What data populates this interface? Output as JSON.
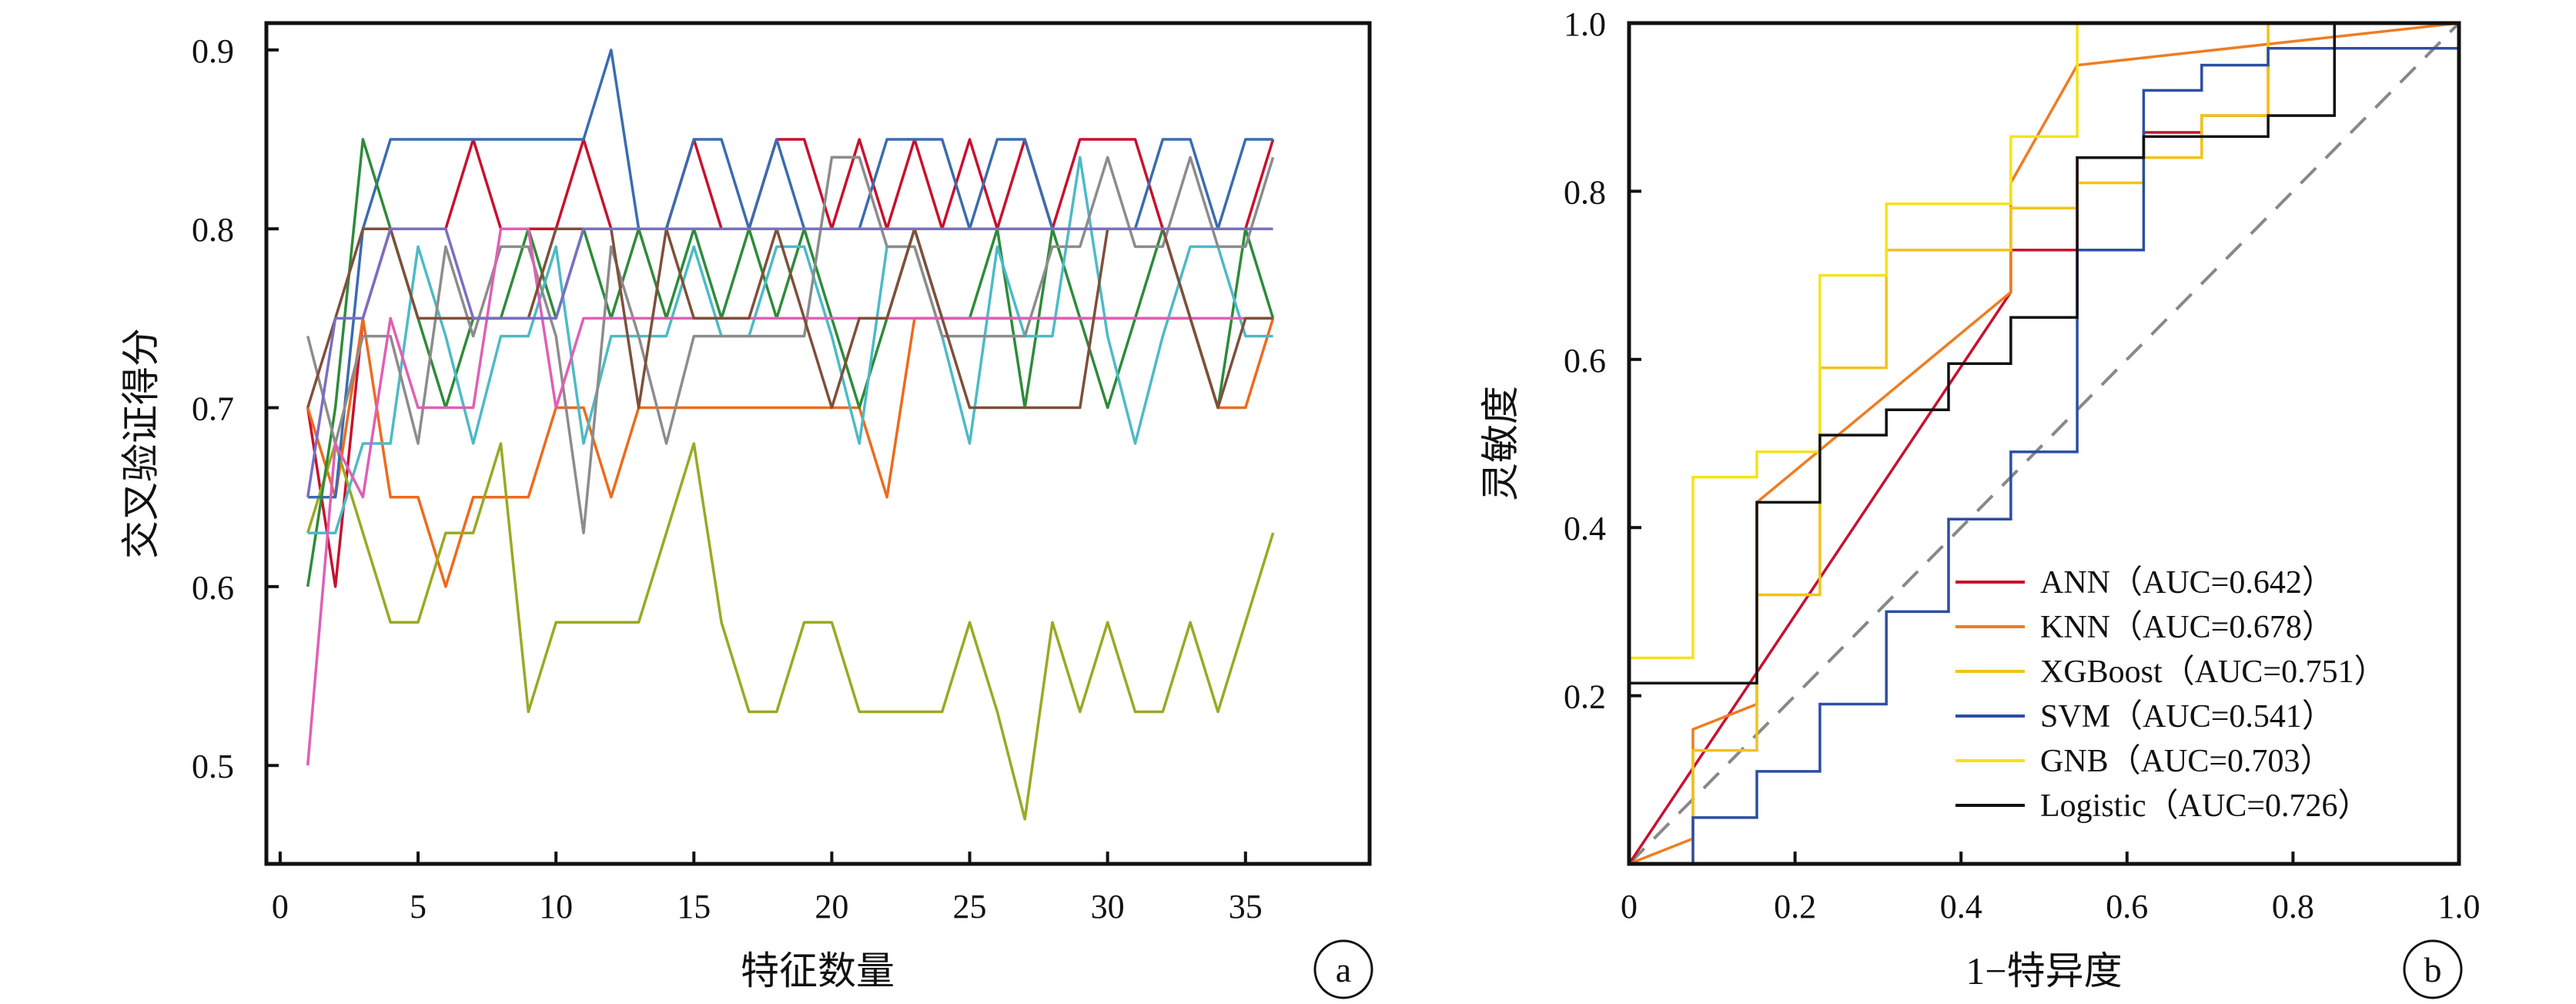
{
  "chart_data": [
    {
      "type": "line",
      "panel_label": "a",
      "xlabel": "特征数量",
      "ylabel": "交叉验证得分",
      "xlim": [
        -0.5,
        39.5
      ],
      "ylim": [
        0.445,
        0.915
      ],
      "xticks": [
        0,
        5,
        10,
        15,
        20,
        25,
        30,
        35
      ],
      "yticks": [
        0.5,
        0.6,
        0.7,
        0.8,
        0.9
      ],
      "grid": false,
      "legend": "none",
      "x": [
        1,
        2,
        3,
        4,
        5,
        6,
        7,
        8,
        9,
        10,
        11,
        12,
        13,
        14,
        15,
        16,
        17,
        18,
        19,
        20,
        21,
        22,
        23,
        24,
        25,
        26,
        27,
        28,
        29,
        30,
        31,
        32,
        33,
        34,
        35,
        36
      ],
      "series": [
        {
          "color": "#c8102e",
          "values": [
            0.7,
            0.6,
            0.75,
            0.8,
            0.8,
            0.8,
            0.85,
            0.8,
            0.8,
            0.8,
            0.85,
            0.8,
            0.8,
            0.8,
            0.85,
            0.8,
            0.8,
            0.85,
            0.85,
            0.8,
            0.85,
            0.8,
            0.85,
            0.8,
            0.85,
            0.8,
            0.85,
            0.8,
            0.85,
            0.85,
            0.85,
            0.8,
            0.8,
            0.8,
            0.8,
            0.85
          ]
        },
        {
          "color": "#ee6a1c",
          "values": [
            0.7,
            0.65,
            0.75,
            0.65,
            0.65,
            0.6,
            0.65,
            0.65,
            0.65,
            0.7,
            0.7,
            0.65,
            0.7,
            0.7,
            0.7,
            0.7,
            0.7,
            0.7,
            0.7,
            0.7,
            0.7,
            0.65,
            0.75,
            0.75,
            0.75,
            0.75,
            0.75,
            0.75,
            0.75,
            0.75,
            0.75,
            0.75,
            0.75,
            0.7,
            0.7,
            0.75
          ]
        },
        {
          "color": "#9aa923",
          "values": [
            0.63,
            0.68,
            0.63,
            0.58,
            0.58,
            0.63,
            0.63,
            0.68,
            0.53,
            0.58,
            0.58,
            0.58,
            0.58,
            0.63,
            0.68,
            0.58,
            0.53,
            0.53,
            0.58,
            0.58,
            0.53,
            0.53,
            0.53,
            0.53,
            0.58,
            0.53,
            0.47,
            0.58,
            0.53,
            0.58,
            0.53,
            0.53,
            0.58,
            0.53,
            0.58,
            0.63
          ]
        },
        {
          "color": "#3a6cb0",
          "values": [
            0.65,
            0.65,
            0.8,
            0.85,
            0.85,
            0.85,
            0.85,
            0.85,
            0.85,
            0.85,
            0.85,
            0.9,
            0.8,
            0.8,
            0.85,
            0.85,
            0.8,
            0.85,
            0.8,
            0.8,
            0.8,
            0.85,
            0.85,
            0.85,
            0.8,
            0.85,
            0.85,
            0.8,
            0.8,
            0.8,
            0.8,
            0.85,
            0.85,
            0.8,
            0.85,
            0.85
          ]
        },
        {
          "color": "#2e8b3a",
          "values": [
            0.6,
            0.7,
            0.85,
            0.8,
            0.75,
            0.7,
            0.75,
            0.75,
            0.8,
            0.75,
            0.8,
            0.75,
            0.8,
            0.75,
            0.8,
            0.75,
            0.8,
            0.75,
            0.8,
            0.75,
            0.7,
            0.75,
            0.8,
            0.75,
            0.75,
            0.8,
            0.7,
            0.8,
            0.75,
            0.7,
            0.75,
            0.8,
            0.75,
            0.7,
            0.8,
            0.75
          ]
        },
        {
          "color": "#4dbac6",
          "values": [
            0.63,
            0.63,
            0.68,
            0.68,
            0.79,
            0.74,
            0.68,
            0.74,
            0.74,
            0.79,
            0.68,
            0.74,
            0.74,
            0.74,
            0.79,
            0.74,
            0.74,
            0.79,
            0.79,
            0.74,
            0.68,
            0.79,
            0.79,
            0.74,
            0.68,
            0.79,
            0.74,
            0.74,
            0.84,
            0.74,
            0.68,
            0.74,
            0.79,
            0.79,
            0.74,
            0.74
          ]
        },
        {
          "color": "#8c8c8c",
          "values": [
            0.74,
            0.68,
            0.74,
            0.74,
            0.68,
            0.79,
            0.74,
            0.79,
            0.79,
            0.74,
            0.63,
            0.79,
            0.74,
            0.68,
            0.74,
            0.74,
            0.74,
            0.74,
            0.74,
            0.84,
            0.84,
            0.79,
            0.79,
            0.74,
            0.74,
            0.74,
            0.74,
            0.79,
            0.79,
            0.84,
            0.79,
            0.79,
            0.84,
            0.79,
            0.79,
            0.84
          ]
        },
        {
          "color": "#e05fb5",
          "values": [
            0.5,
            0.68,
            0.65,
            0.75,
            0.7,
            0.7,
            0.7,
            0.8,
            0.8,
            0.7,
            0.75,
            0.75,
            0.75,
            0.75,
            0.75,
            0.75,
            0.75,
            0.75,
            0.75,
            0.75,
            0.75,
            0.75,
            0.75,
            0.75,
            0.75,
            0.75,
            0.75,
            0.75,
            0.75,
            0.75,
            0.75,
            0.75,
            0.75,
            0.75,
            0.75,
            0.75
          ]
        },
        {
          "color": "#7f4f3a",
          "values": [
            0.7,
            0.75,
            0.8,
            0.8,
            0.75,
            0.75,
            0.75,
            0.75,
            0.75,
            0.8,
            0.8,
            0.8,
            0.7,
            0.8,
            0.75,
            0.75,
            0.75,
            0.8,
            0.75,
            0.7,
            0.75,
            0.75,
            0.8,
            0.75,
            0.7,
            0.7,
            0.7,
            0.7,
            0.7,
            0.8,
            0.8,
            0.8,
            0.75,
            0.7,
            0.75,
            0.75
          ]
        },
        {
          "color": "#7a6ec4",
          "values": [
            0.65,
            0.75,
            0.75,
            0.8,
            0.8,
            0.8,
            0.75,
            0.75,
            0.75,
            0.75,
            0.8,
            0.8,
            0.8,
            0.8,
            0.8,
            0.8,
            0.8,
            0.8,
            0.8,
            0.8,
            0.8,
            0.8,
            0.8,
            0.8,
            0.8,
            0.8,
            0.8,
            0.8,
            0.8,
            0.8,
            0.8,
            0.8,
            0.8,
            0.8,
            0.8,
            0.8
          ]
        }
      ]
    },
    {
      "type": "line",
      "panel_label": "b",
      "xlabel": "1−特异度",
      "ylabel": "灵敏度",
      "xlim": [
        0,
        1
      ],
      "ylim": [
        0,
        1
      ],
      "xticks": [
        0,
        0.2,
        0.4,
        0.6,
        0.8,
        1.0
      ],
      "xtick_labels": [
        "0",
        "0.2",
        "0.4",
        "0.6",
        "0.8",
        "1.0"
      ],
      "yticks": [
        0.2,
        0.4,
        0.6,
        0.8,
        1.0
      ],
      "ytick_labels": [
        "0.2",
        "0.4",
        "0.6",
        "0.8",
        "1.0"
      ],
      "grid": false,
      "legend": "bottom-right",
      "reference_line": {
        "x": [
          0,
          1
        ],
        "y": [
          0,
          1
        ],
        "color": "#888888",
        "style": "dashed"
      },
      "series": [
        {
          "name": "ANN",
          "auc_label": "（AUC=0.642）",
          "color": "#c8102e",
          "x": [
            0,
            0.46,
            0.46,
            0.54,
            0.54,
            0.62,
            0.62,
            0.69,
            0.69,
            0.77,
            0.77,
            0.85,
            0.85,
            1.0
          ],
          "y": [
            0,
            0.68,
            0.73,
            0.73,
            0.84,
            0.84,
            0.87,
            0.87,
            0.89,
            0.89,
            0.97,
            0.97,
            1.0,
            1.0
          ]
        },
        {
          "name": "KNN",
          "auc_label": "（AUC=0.678）",
          "color": "#ee7d22",
          "x": [
            0,
            0.077,
            0.077,
            0.154,
            0.154,
            0.46,
            0.46,
            0.54,
            0.54,
            1.0
          ],
          "y": [
            0,
            0.03,
            0.16,
            0.19,
            0.43,
            0.68,
            0.81,
            0.95,
            0.95,
            1.0
          ]
        },
        {
          "name": "XGBoost",
          "auc_label": "（AUC=0.751）",
          "color": "#f2c318",
          "x": [
            0,
            0.077,
            0.077,
            0.154,
            0.154,
            0.23,
            0.23,
            0.31,
            0.31,
            0.46,
            0.46,
            0.54,
            0.54,
            0.62,
            0.62,
            0.69,
            0.69,
            0.77,
            0.77,
            1.0
          ],
          "y": [
            0,
            0,
            0.135,
            0.135,
            0.32,
            0.32,
            0.59,
            0.59,
            0.73,
            0.73,
            0.78,
            0.78,
            0.81,
            0.81,
            0.84,
            0.84,
            0.89,
            0.89,
            1.0,
            1.0
          ]
        },
        {
          "name": "SVM",
          "auc_label": "（AUC=0.541）",
          "color": "#2b4fa2",
          "x": [
            0,
            0.077,
            0.077,
            0.154,
            0.154,
            0.23,
            0.23,
            0.31,
            0.31,
            0.385,
            0.385,
            0.46,
            0.46,
            0.54,
            0.54,
            0.62,
            0.62,
            0.69,
            0.69,
            0.77,
            0.77,
            1.0
          ],
          "y": [
            0,
            0,
            0.055,
            0.055,
            0.11,
            0.11,
            0.19,
            0.19,
            0.3,
            0.3,
            0.41,
            0.41,
            0.49,
            0.49,
            0.73,
            0.73,
            0.92,
            0.92,
            0.95,
            0.95,
            0.97,
            0.97
          ]
        },
        {
          "name": "GNB",
          "auc_label": "（AUC=0.703）",
          "color": "#f5e318",
          "x": [
            0,
            0,
            0.077,
            0.077,
            0.154,
            0.154,
            0.23,
            0.23,
            0.31,
            0.31,
            0.46,
            0.46,
            0.54,
            0.54,
            1.0
          ],
          "y": [
            0,
            0.245,
            0.245,
            0.46,
            0.46,
            0.49,
            0.49,
            0.7,
            0.7,
            0.785,
            0.785,
            0.865,
            0.865,
            1.0,
            1.0
          ]
        },
        {
          "name": "Logistic",
          "auc_label": "（AUC=0.726）",
          "color": "#111111",
          "x": [
            0,
            0,
            0.154,
            0.154,
            0.23,
            0.23,
            0.31,
            0.31,
            0.385,
            0.385,
            0.46,
            0.46,
            0.54,
            0.54,
            0.62,
            0.62,
            0.69,
            0.69,
            0.77,
            0.77,
            0.85,
            0.85,
            1.0
          ],
          "y": [
            0,
            0.215,
            0.215,
            0.43,
            0.43,
            0.51,
            0.51,
            0.54,
            0.54,
            0.595,
            0.595,
            0.65,
            0.65,
            0.84,
            0.84,
            0.865,
            0.865,
            0.865,
            0.865,
            0.89,
            0.89,
            1.0,
            1.0
          ]
        }
      ]
    }
  ]
}
